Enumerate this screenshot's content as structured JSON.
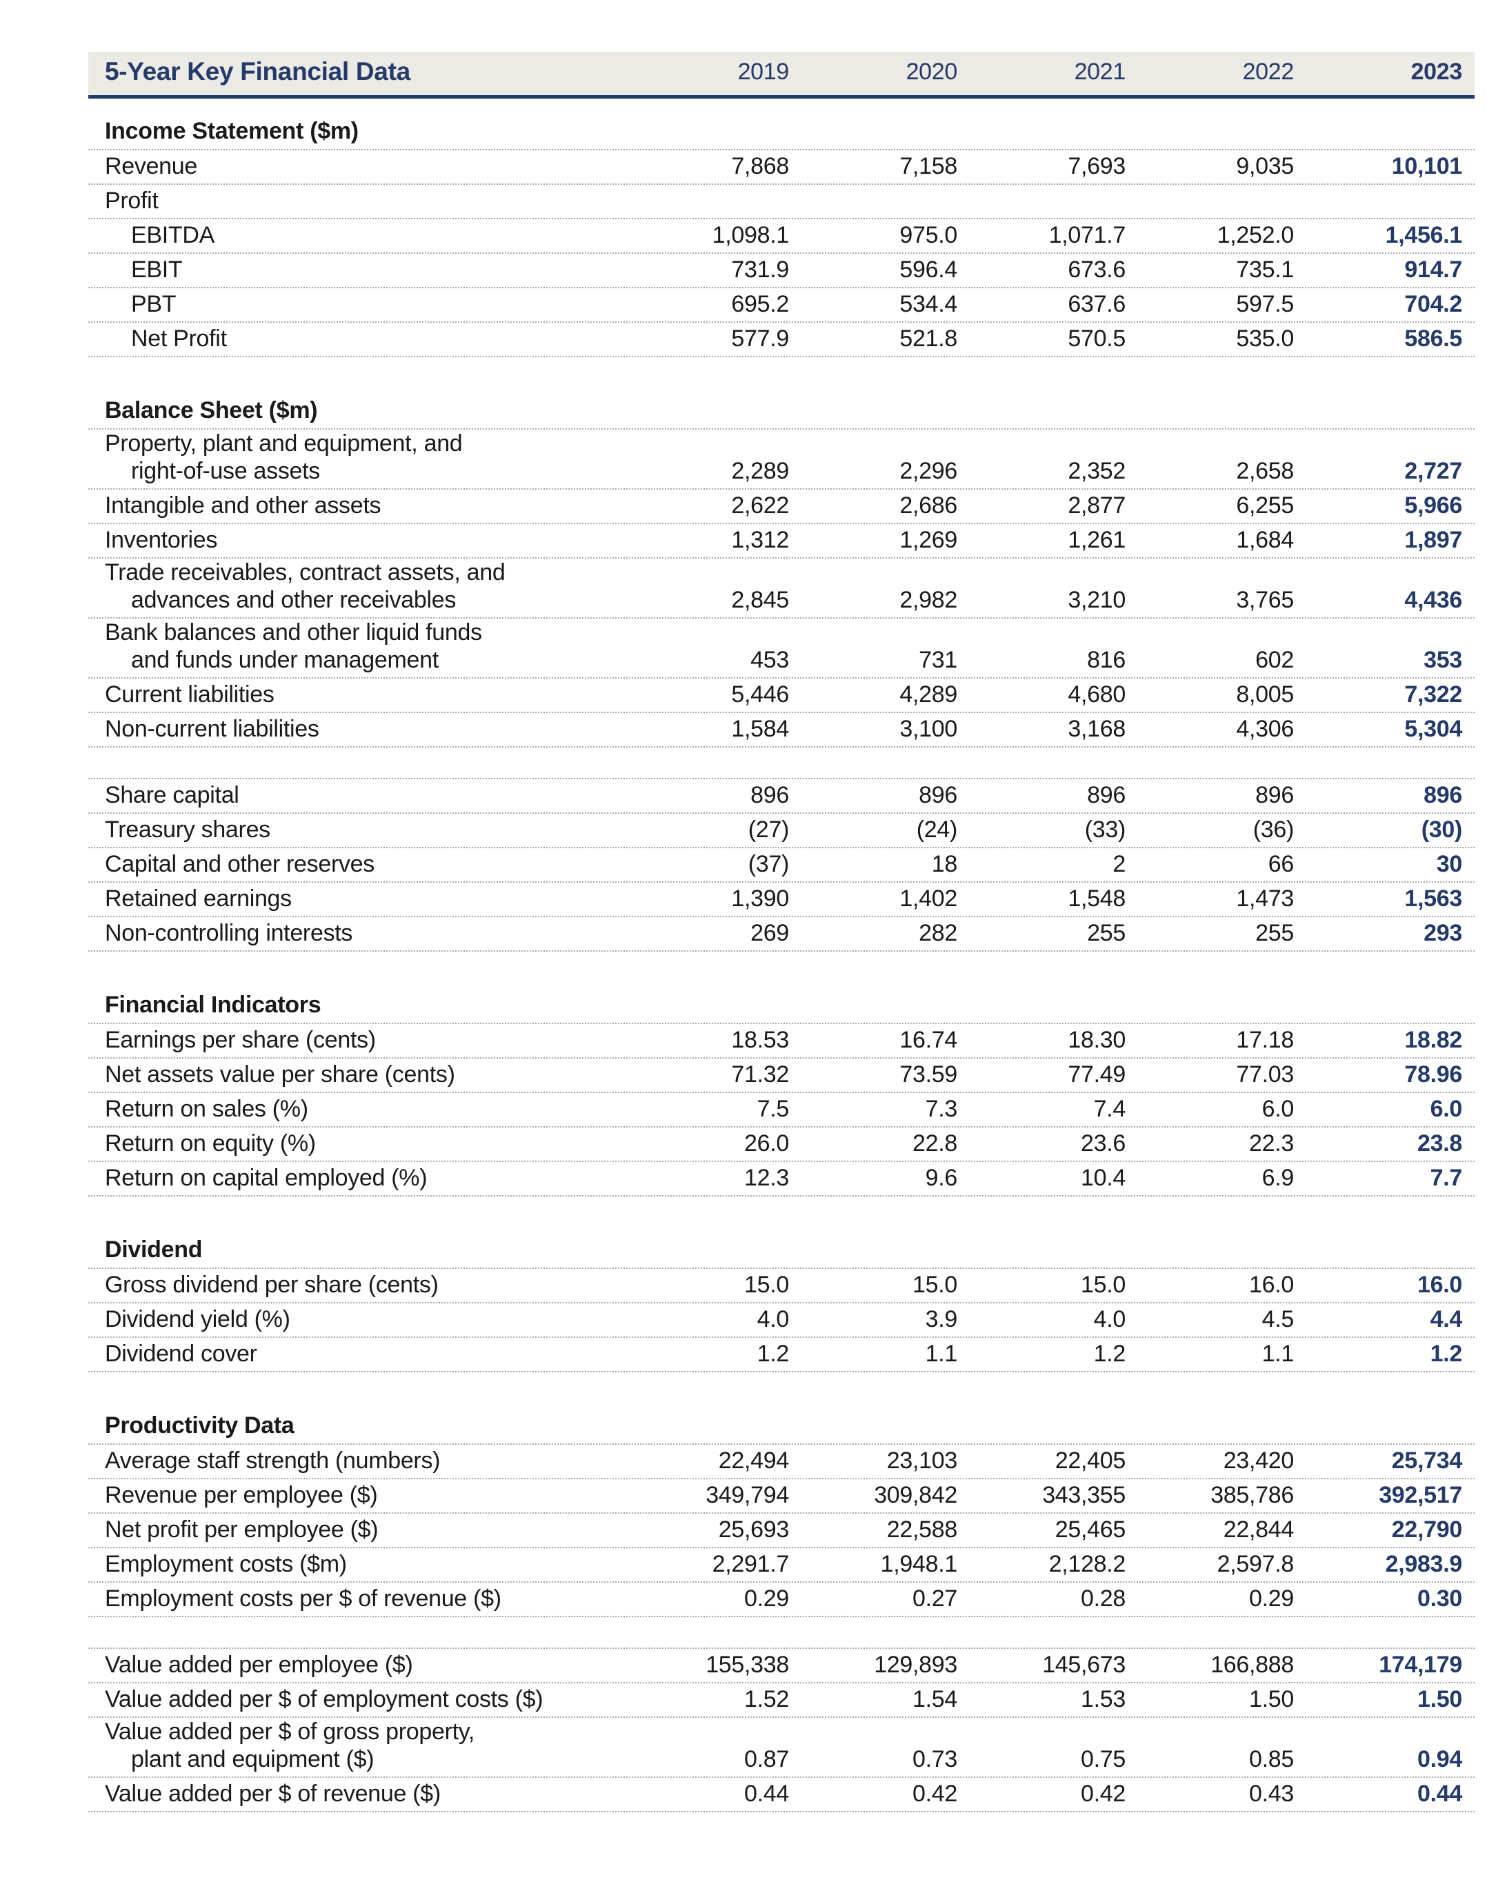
{
  "colors": {
    "navy": "#243A6B",
    "band": "#ECEAE5",
    "text": "#1A1A1A",
    "dotted": "#A8A8A8",
    "paper": "#FFFFFF"
  },
  "table": {
    "title": "5-Year Key Financial Data",
    "years": [
      "2019",
      "2020",
      "2021",
      "2022",
      "2023"
    ],
    "sections": [
      {
        "heading": "Income Statement ($m)",
        "rows": [
          {
            "label": "Revenue",
            "values": [
              "7,868",
              "7,158",
              "7,693",
              "9,035",
              "10,101"
            ]
          },
          {
            "label": "Profit",
            "values": [
              "",
              "",
              "",
              "",
              ""
            ]
          },
          {
            "label": "EBITDA",
            "indent": true,
            "values": [
              "1,098.1",
              "975.0",
              "1,071.7",
              "1,252.0",
              "1,456.1"
            ]
          },
          {
            "label": "EBIT",
            "indent": true,
            "values": [
              "731.9",
              "596.4",
              "673.6",
              "735.1",
              "914.7"
            ]
          },
          {
            "label": "PBT",
            "indent": true,
            "values": [
              "695.2",
              "534.4",
              "637.6",
              "597.5",
              "704.2"
            ]
          },
          {
            "label": "Net Profit",
            "indent": true,
            "values": [
              "577.9",
              "521.8",
              "570.5",
              "535.0",
              "586.5"
            ]
          }
        ]
      },
      {
        "heading": "Balance Sheet ($m)",
        "rows": [
          {
            "label": "Property, plant and equipment, and",
            "label2": "right-of-use assets",
            "values": [
              "2,289",
              "2,296",
              "2,352",
              "2,658",
              "2,727"
            ]
          },
          {
            "label": "Intangible and other assets",
            "values": [
              "2,622",
              "2,686",
              "2,877",
              "6,255",
              "5,966"
            ]
          },
          {
            "label": "Inventories",
            "values": [
              "1,312",
              "1,269",
              "1,261",
              "1,684",
              "1,897"
            ]
          },
          {
            "label": "Trade receivables, contract assets, and",
            "label2": "advances and other receivables",
            "values": [
              "2,845",
              "2,982",
              "3,210",
              "3,765",
              "4,436"
            ]
          },
          {
            "label": "Bank balances and other liquid funds",
            "label2": "and funds under management",
            "values": [
              "453",
              "731",
              "816",
              "602",
              "353"
            ]
          },
          {
            "label": "Current liabilities",
            "values": [
              "5,446",
              "4,289",
              "4,680",
              "8,005",
              "7,322"
            ]
          },
          {
            "label": "Non-current liabilities",
            "values": [
              "1,584",
              "3,100",
              "3,168",
              "4,306",
              "5,304"
            ]
          },
          {
            "gap": true
          },
          {
            "label": "Share capital",
            "values": [
              "896",
              "896",
              "896",
              "896",
              "896"
            ]
          },
          {
            "label": "Treasury shares",
            "values": [
              "(27)",
              "(24)",
              "(33)",
              "(36)",
              "(30)"
            ]
          },
          {
            "label": "Capital and other reserves",
            "values": [
              "(37)",
              "18",
              "2",
              "66",
              "30"
            ]
          },
          {
            "label": "Retained earnings",
            "values": [
              "1,390",
              "1,402",
              "1,548",
              "1,473",
              "1,563"
            ]
          },
          {
            "label": "Non-controlling interests",
            "values": [
              "269",
              "282",
              "255",
              "255",
              "293"
            ]
          }
        ]
      },
      {
        "heading": "Financial Indicators",
        "rows": [
          {
            "label": "Earnings per share (cents)",
            "values": [
              "18.53",
              "16.74",
              "18.30",
              "17.18",
              "18.82"
            ]
          },
          {
            "label": "Net assets value per share (cents)",
            "values": [
              "71.32",
              "73.59",
              "77.49",
              "77.03",
              "78.96"
            ]
          },
          {
            "label": "Return on sales (%)",
            "values": [
              "7.5",
              "7.3",
              "7.4",
              "6.0",
              "6.0"
            ]
          },
          {
            "label": "Return on equity (%)",
            "values": [
              "26.0",
              "22.8",
              "23.6",
              "22.3",
              "23.8"
            ]
          },
          {
            "label": "Return on capital employed (%)",
            "values": [
              "12.3",
              "9.6",
              "10.4",
              "6.9",
              "7.7"
            ]
          }
        ]
      },
      {
        "heading": "Dividend",
        "rows": [
          {
            "label": "Gross dividend per share (cents)",
            "values": [
              "15.0",
              "15.0",
              "15.0",
              "16.0",
              "16.0"
            ]
          },
          {
            "label": "Dividend yield (%)",
            "values": [
              "4.0",
              "3.9",
              "4.0",
              "4.5",
              "4.4"
            ]
          },
          {
            "label": "Dividend cover",
            "values": [
              "1.2",
              "1.1",
              "1.2",
              "1.1",
              "1.2"
            ]
          }
        ]
      },
      {
        "heading": "Productivity Data",
        "rows": [
          {
            "label": "Average staff strength (numbers)",
            "values": [
              "22,494",
              "23,103",
              "22,405",
              "23,420",
              "25,734"
            ]
          },
          {
            "label": "Revenue per employee ($)",
            "values": [
              "349,794",
              "309,842",
              "343,355",
              "385,786",
              "392,517"
            ]
          },
          {
            "label": "Net profit per employee ($)",
            "values": [
              "25,693",
              "22,588",
              "25,465",
              "22,844",
              "22,790"
            ]
          },
          {
            "label": "Employment costs ($m)",
            "values": [
              "2,291.7",
              "1,948.1",
              "2,128.2",
              "2,597.8",
              "2,983.9"
            ]
          },
          {
            "label": "Employment costs per $ of revenue ($)",
            "values": [
              "0.29",
              "0.27",
              "0.28",
              "0.29",
              "0.30"
            ]
          },
          {
            "gap": true
          },
          {
            "label": "Value added per employee ($)",
            "values": [
              "155,338",
              "129,893",
              "145,673",
              "166,888",
              "174,179"
            ]
          },
          {
            "label": "Value added per $ of employment costs ($)",
            "values": [
              "1.52",
              "1.54",
              "1.53",
              "1.50",
              "1.50"
            ]
          },
          {
            "label": "Value added per $ of gross property,",
            "label2": "plant and equipment ($)",
            "values": [
              "0.87",
              "0.73",
              "0.75",
              "0.85",
              "0.94"
            ]
          },
          {
            "label": "Value added per $ of revenue ($)",
            "values": [
              "0.44",
              "0.42",
              "0.42",
              "0.43",
              "0.44"
            ]
          }
        ]
      }
    ]
  }
}
